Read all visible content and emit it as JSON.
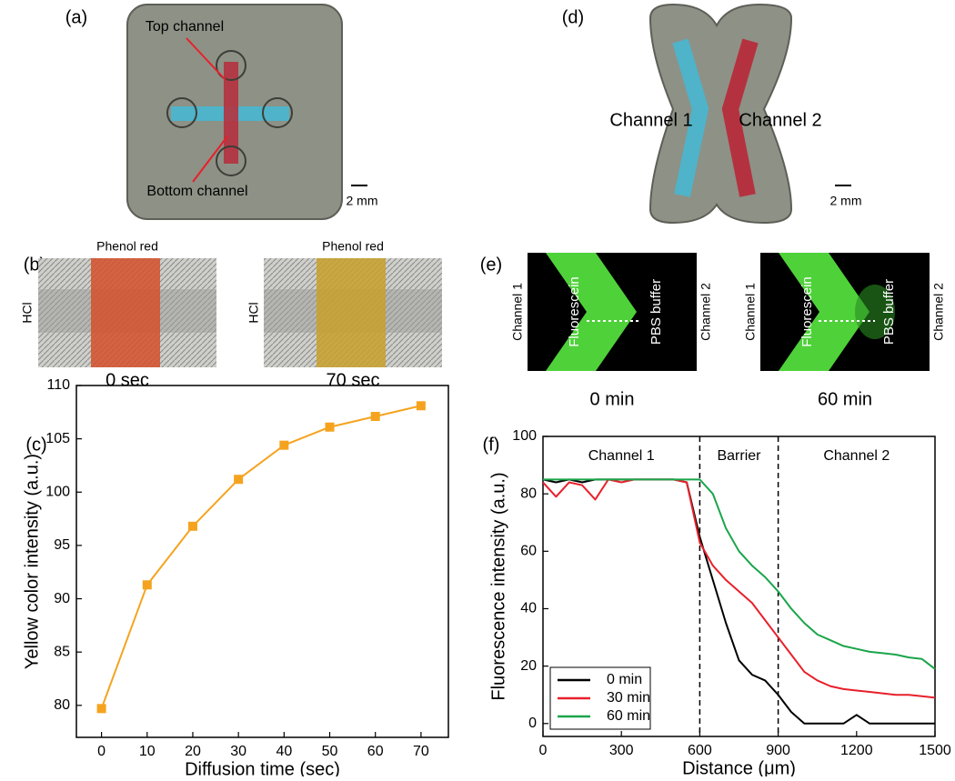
{
  "panels": {
    "a": {
      "label": "(a)",
      "top": "Top channel",
      "bottom": "Bottom channel",
      "scale": "2 mm"
    },
    "b": {
      "label": "(b)",
      "left_title": "Phenol red",
      "right_title": "Phenol red",
      "left_side": "HCl",
      "right_side": "HCl",
      "left_time": "0 sec",
      "right_time": "70 sec"
    },
    "c": {
      "label": "(c)"
    },
    "d": {
      "label": "(d)",
      "ch1": "Channel 1",
      "ch2": "Channel 2",
      "scale": "2 mm"
    },
    "e": {
      "label": "(e)",
      "l_ch1": "Channel 1",
      "l_fluo": "Fluorescein",
      "l_pbs": "PBS buffer",
      "l_ch2": "Channel 2",
      "l_time": "0 min",
      "r_ch1": "Channel 1",
      "r_fluo": "Fluorescein",
      "r_pbs": "PBS buffer",
      "r_ch2": "Channel 2",
      "r_time": "60 min"
    },
    "f": {
      "label": "(f)"
    }
  },
  "chart_data": [
    {
      "type": "line",
      "x_label": "Diffusion time (sec)",
      "y_label": "Yellow color intensity (a.u.)",
      "x": [
        0,
        10,
        20,
        30,
        40,
        50,
        60,
        70
      ],
      "series": [
        {
          "color": "#f5a31f",
          "marker": "square",
          "values": [
            79.7,
            91.3,
            96.8,
            101.2,
            104.4,
            106.1,
            107.1,
            108.1
          ]
        }
      ],
      "xlim": [
        -5.5,
        76
      ],
      "ylim": [
        77,
        110
      ],
      "xticks": [
        0,
        10,
        20,
        30,
        40,
        50,
        60,
        70
      ],
      "yticks": [
        80,
        85,
        90,
        95,
        100,
        105,
        110
      ]
    },
    {
      "type": "line",
      "x_label": "Distance (μm)",
      "y_label": "Fluorescence intensity (a.u.)",
      "x": [
        0,
        50,
        100,
        150,
        200,
        250,
        300,
        350,
        400,
        450,
        500,
        550,
        600,
        650,
        700,
        750,
        800,
        850,
        900,
        950,
        1000,
        1050,
        1100,
        1150,
        1200,
        1250,
        1300,
        1350,
        1400,
        1450,
        1500
      ],
      "series": [
        {
          "name": "0 min",
          "color": "#000000",
          "values": [
            85,
            84,
            85,
            84,
            85,
            85,
            85,
            85,
            85,
            85,
            85,
            84,
            65,
            50,
            35,
            22,
            17,
            15,
            10,
            4,
            0,
            0,
            0,
            0,
            3,
            0,
            0,
            0,
            0,
            0,
            0
          ]
        },
        {
          "name": "30 min",
          "color": "#e8202a",
          "values": [
            84,
            79,
            84,
            83,
            78,
            85,
            84,
            85,
            85,
            85,
            85,
            84,
            63,
            55,
            50,
            46,
            42,
            36,
            30,
            24,
            18,
            15,
            13,
            12,
            11.5,
            11,
            10.5,
            10,
            10,
            9.5,
            9
          ]
        },
        {
          "name": "60 min",
          "color": "#1aa54a",
          "values": [
            85,
            85,
            85,
            85,
            85,
            85,
            85,
            85,
            85,
            85,
            85,
            85,
            85,
            80,
            68,
            60,
            55,
            51,
            46,
            40,
            35,
            31,
            29,
            27,
            26,
            25,
            24.5,
            24,
            23,
            22.5,
            19
          ]
        }
      ],
      "xlim": [
        0,
        1500
      ],
      "ylim": [
        -4.5,
        100
      ],
      "xticks": [
        0,
        300,
        600,
        900,
        1200,
        1500
      ],
      "yticks": [
        0,
        20,
        40,
        60,
        80,
        100
      ],
      "vlines": [
        600,
        900
      ],
      "region_labels": [
        "Channel 1",
        "Barrier",
        "Channel 2"
      ],
      "legend": "lower left"
    }
  ]
}
